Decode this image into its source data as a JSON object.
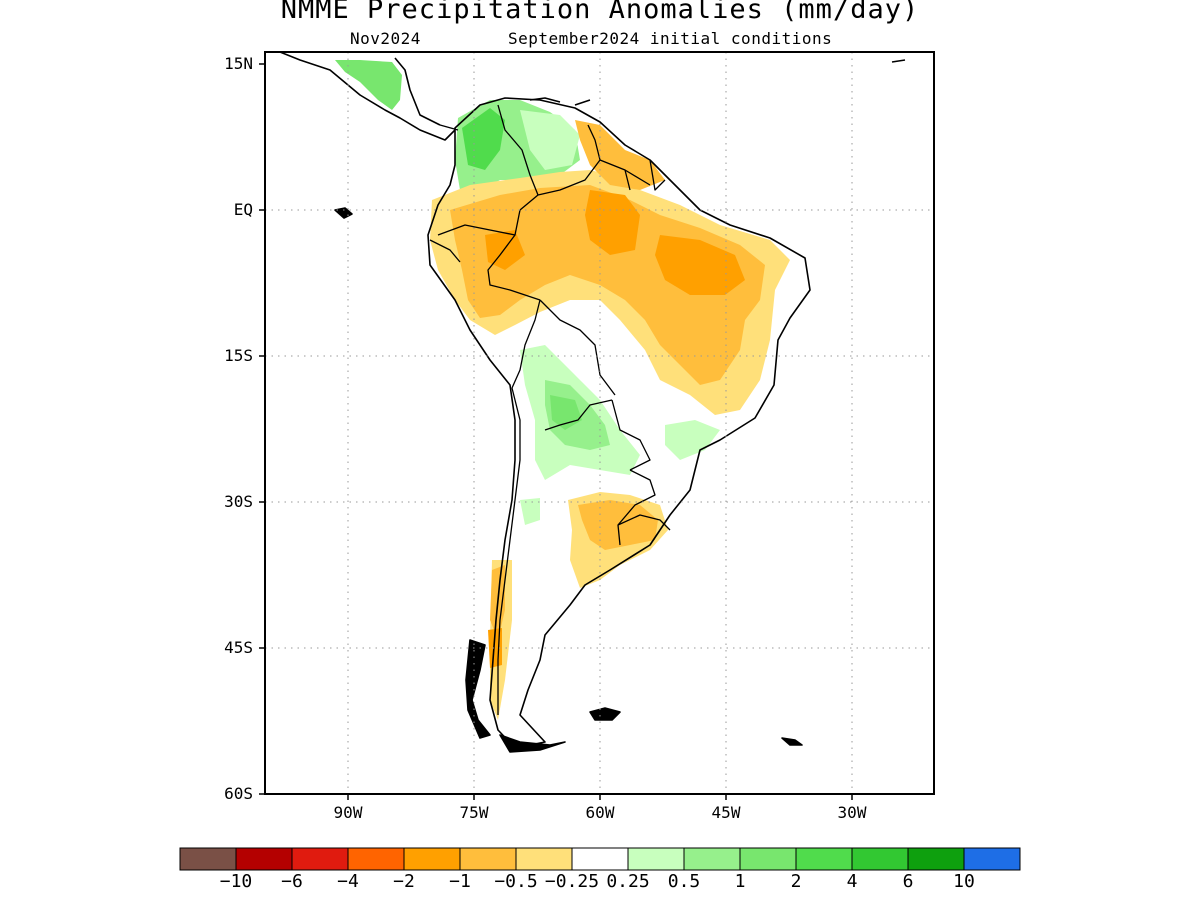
{
  "title": "NMME Precipitation Anomalies (mm/day)",
  "subtitle_left": "Nov2024",
  "subtitle_right": "September2024 initial conditions",
  "lat_ticks": [
    "15N",
    "EQ",
    "15S",
    "30S",
    "45S",
    "60S"
  ],
  "lon_ticks": [
    "90W",
    "75W",
    "60W",
    "45W",
    "30W"
  ],
  "colorbar": {
    "labels": [
      "−10",
      "−6",
      "−4",
      "−2",
      "−1",
      "−0.5",
      "−0.25",
      "0.25",
      "0.5",
      "1",
      "2",
      "4",
      "6",
      "10"
    ],
    "colors": [
      "#7a5046",
      "#b40000",
      "#e01b0f",
      "#ff6400",
      "#ffa000",
      "#ffbe3c",
      "#ffe07a",
      "#ffffff",
      "#c8ffbe",
      "#96f08c",
      "#78e66e",
      "#50dc4c",
      "#32c832",
      "#0ea00e",
      "#1e6ee6"
    ]
  },
  "colors": {
    "dry_strong": "#ffa000",
    "dry": "#ffbe3c",
    "dry_light": "#ffe07a",
    "wet_light": "#c8ffbe",
    "wet": "#96f08c",
    "wet_strong": "#78e66e",
    "wet_stronger": "#50dc4c"
  }
}
